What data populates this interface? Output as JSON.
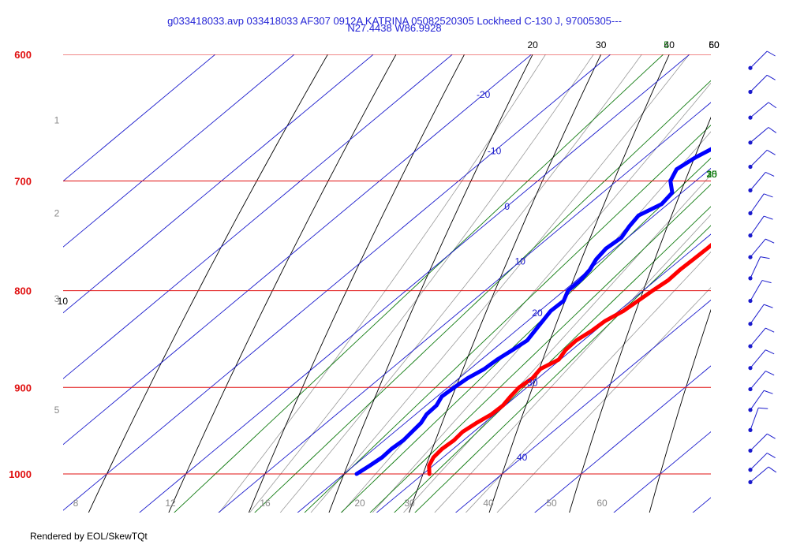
{
  "header": {
    "title_line1": "g033418033.avp 033418033 AF307 0912A KATRINA 05082520305 Lockheed C-130 J, 97005305---",
    "title_line2": "N27.4438 W86.9928"
  },
  "footer": {
    "credit": "Rendered by EOL/SkewTQt"
  },
  "colors": {
    "isobar": "#e01010",
    "isotherm": "#1a1acc",
    "dry_adiabat": "#000000",
    "mixing_ratio": "#0f7a0f",
    "moist_adiabat": "#9a9a9a",
    "temperature": "#ff0000",
    "dewpoint": "#0000ff",
    "wind_barb": "#1a1acc"
  },
  "chart_data": {
    "type": "skew-t",
    "pressure_axis": {
      "unit": "hPa",
      "range": [
        1000,
        600
      ],
      "ticks": [
        {
          "value": 600,
          "label": "600"
        },
        {
          "value": 700,
          "label": "700"
        },
        {
          "value": 800,
          "label": "800"
        },
        {
          "value": 900,
          "label": "900"
        },
        {
          "value": 1000,
          "label": "1000"
        }
      ]
    },
    "altitude_labels": [
      {
        "pressure": 650,
        "label": "1"
      },
      {
        "pressure": 728,
        "label": "2"
      },
      {
        "pressure": 808,
        "label": "3"
      },
      {
        "pressure": 925,
        "label": "5"
      }
    ],
    "temperature_axis": {
      "unit": "C",
      "ticks": [
        {
          "value": 8,
          "label": "8"
        },
        {
          "value": 12,
          "label": "12"
        },
        {
          "value": 16,
          "label": "16"
        },
        {
          "value": 20,
          "label": "20"
        },
        {
          "value": 30,
          "label": "30"
        },
        {
          "value": 40,
          "label": "40"
        },
        {
          "value": 50,
          "label": "50"
        },
        {
          "value": 60,
          "label": "60"
        }
      ]
    },
    "isotherms": [
      {
        "value": -20,
        "label": "-20"
      },
      {
        "value": -10,
        "label": "-10"
      },
      {
        "value": 0,
        "label": "0"
      },
      {
        "value": 10,
        "label": "10"
      },
      {
        "value": 20,
        "label": "20"
      },
      {
        "value": 30,
        "label": "30"
      },
      {
        "value": 40,
        "label": "40"
      }
    ],
    "mixing_ratio_lines": [
      {
        "value": 5,
        "label": "5"
      },
      {
        "value": 10,
        "label": "10"
      },
      {
        "value": 15,
        "label": "15"
      },
      {
        "value": 20,
        "label": "20"
      },
      {
        "value": 25,
        "label": "25"
      },
      {
        "value": 30,
        "label": "30"
      },
      {
        "value": 35,
        "label": "35"
      }
    ],
    "dry_adiabats": [
      {
        "value": 10,
        "label": "10"
      },
      {
        "value": 20,
        "label": "20"
      },
      {
        "value": 30,
        "label": "30"
      },
      {
        "value": 40,
        "label": "40"
      },
      {
        "value": 50,
        "label": "50"
      },
      {
        "value": 60,
        "label": "60"
      }
    ],
    "moist_adiabats": [
      8,
      12,
      16,
      20,
      24,
      28,
      32,
      36,
      40,
      44
    ],
    "series": [
      {
        "name": "temperature",
        "points": [
          [
            1000,
            30.8
          ],
          [
            990,
            29.5
          ],
          [
            980,
            28.8
          ],
          [
            970,
            28.6
          ],
          [
            960,
            28.8
          ],
          [
            950,
            28.6
          ],
          [
            940,
            29.0
          ],
          [
            930,
            29.6
          ],
          [
            920,
            29.7
          ],
          [
            910,
            29.3
          ],
          [
            900,
            29.0
          ],
          [
            890,
            29.3
          ],
          [
            880,
            28.9
          ],
          [
            870,
            29.8
          ],
          [
            860,
            29.2
          ],
          [
            850,
            29.1
          ],
          [
            840,
            29.6
          ],
          [
            830,
            29.8
          ],
          [
            820,
            30.6
          ],
          [
            810,
            30.9
          ],
          [
            800,
            31.2
          ],
          [
            790,
            31.6
          ],
          [
            780,
            31.5
          ],
          [
            770,
            31.6
          ],
          [
            760,
            31.7
          ],
          [
            750,
            31.7
          ],
          [
            740,
            31.8
          ],
          [
            730,
            31.4
          ],
          [
            720,
            31.4
          ],
          [
            710,
            31.3
          ],
          [
            700,
            30.9
          ],
          [
            690,
            30.4
          ],
          [
            680,
            29.9
          ],
          [
            670,
            29.8
          ],
          [
            660,
            29.7
          ],
          [
            650,
            29.0
          ],
          [
            640,
            28.3
          ],
          [
            630,
            27.6
          ],
          [
            620,
            27.2
          ],
          [
            610,
            27.0
          ],
          [
            600,
            26.6
          ]
        ]
      },
      {
        "name": "dewpoint",
        "points": [
          [
            1000,
            21.6
          ],
          [
            990,
            22.0
          ],
          [
            980,
            22.3
          ],
          [
            970,
            22.2
          ],
          [
            960,
            22.4
          ],
          [
            950,
            22.2
          ],
          [
            940,
            22.0
          ],
          [
            930,
            21.4
          ],
          [
            920,
            21.3
          ],
          [
            910,
            20.6
          ],
          [
            900,
            20.8
          ],
          [
            890,
            21.1
          ],
          [
            880,
            21.8
          ],
          [
            870,
            22.0
          ],
          [
            860,
            22.5
          ],
          [
            850,
            22.9
          ],
          [
            840,
            22.4
          ],
          [
            830,
            21.9
          ],
          [
            820,
            21.4
          ],
          [
            810,
            21.5
          ],
          [
            800,
            20.5
          ],
          [
            790,
            20.5
          ],
          [
            780,
            20.1
          ],
          [
            770,
            19.3
          ],
          [
            760,
            18.9
          ],
          [
            750,
            19.2
          ],
          [
            740,
            18.5
          ],
          [
            730,
            18.0
          ],
          [
            720,
            19.2
          ],
          [
            710,
            18.8
          ],
          [
            700,
            16.8
          ],
          [
            690,
            15.8
          ],
          [
            680,
            16.4
          ],
          [
            670,
            17.5
          ],
          [
            660,
            16.2
          ],
          [
            650,
            16.1
          ],
          [
            640,
            17.1
          ],
          [
            630,
            17.8
          ],
          [
            620,
            17.7
          ],
          [
            610,
            17.5
          ],
          [
            600,
            17.3
          ]
        ]
      }
    ],
    "wind_barbs": [
      {
        "pressure": 610,
        "direction": 225,
        "speed": 10
      },
      {
        "pressure": 628,
        "direction": 225,
        "speed": 10
      },
      {
        "pressure": 648,
        "direction": 230,
        "speed": 10
      },
      {
        "pressure": 668,
        "direction": 230,
        "speed": 10
      },
      {
        "pressure": 688,
        "direction": 225,
        "speed": 10
      },
      {
        "pressure": 708,
        "direction": 220,
        "speed": 10
      },
      {
        "pressure": 728,
        "direction": 215,
        "speed": 10
      },
      {
        "pressure": 748,
        "direction": 215,
        "speed": 10
      },
      {
        "pressure": 768,
        "direction": 220,
        "speed": 10
      },
      {
        "pressure": 788,
        "direction": 205,
        "speed": 10
      },
      {
        "pressure": 810,
        "direction": 210,
        "speed": 10
      },
      {
        "pressure": 833,
        "direction": 215,
        "speed": 10
      },
      {
        "pressure": 856,
        "direction": 220,
        "speed": 10
      },
      {
        "pressure": 879,
        "direction": 220,
        "speed": 10
      },
      {
        "pressure": 902,
        "direction": 220,
        "speed": 10
      },
      {
        "pressure": 925,
        "direction": 215,
        "speed": 10
      },
      {
        "pressure": 948,
        "direction": 200,
        "speed": 10
      },
      {
        "pressure": 972,
        "direction": 225,
        "speed": 10
      },
      {
        "pressure": 995,
        "direction": 225,
        "speed": 10
      },
      {
        "pressure": 1010,
        "direction": 230,
        "speed": 10
      }
    ]
  }
}
